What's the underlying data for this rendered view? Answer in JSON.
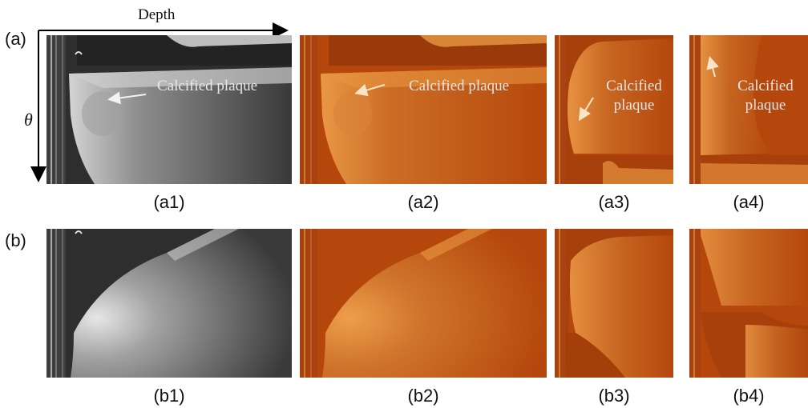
{
  "axes": {
    "depth": "Depth",
    "theta": "θ"
  },
  "rows": [
    {
      "label": "(a)",
      "captions": [
        "(a1)",
        "(a2)",
        "(a3)",
        "(a4)"
      ]
    },
    {
      "label": "(b)",
      "captions": [
        "(b1)",
        "(b2)",
        "(b3)",
        "(b4)"
      ]
    }
  ],
  "annotations": {
    "a1": "Calcified plaque",
    "a2": "Calcified plaque",
    "a3_line1": "Calcified",
    "a3_line2": "plaque",
    "a4_line1": "Calcified",
    "a4_line2": "plaque"
  },
  "colors": {
    "grayscale_bg": "#2e2e2e",
    "orange_bg": "#b5470c",
    "orange_highlight": "#f0a04a"
  }
}
